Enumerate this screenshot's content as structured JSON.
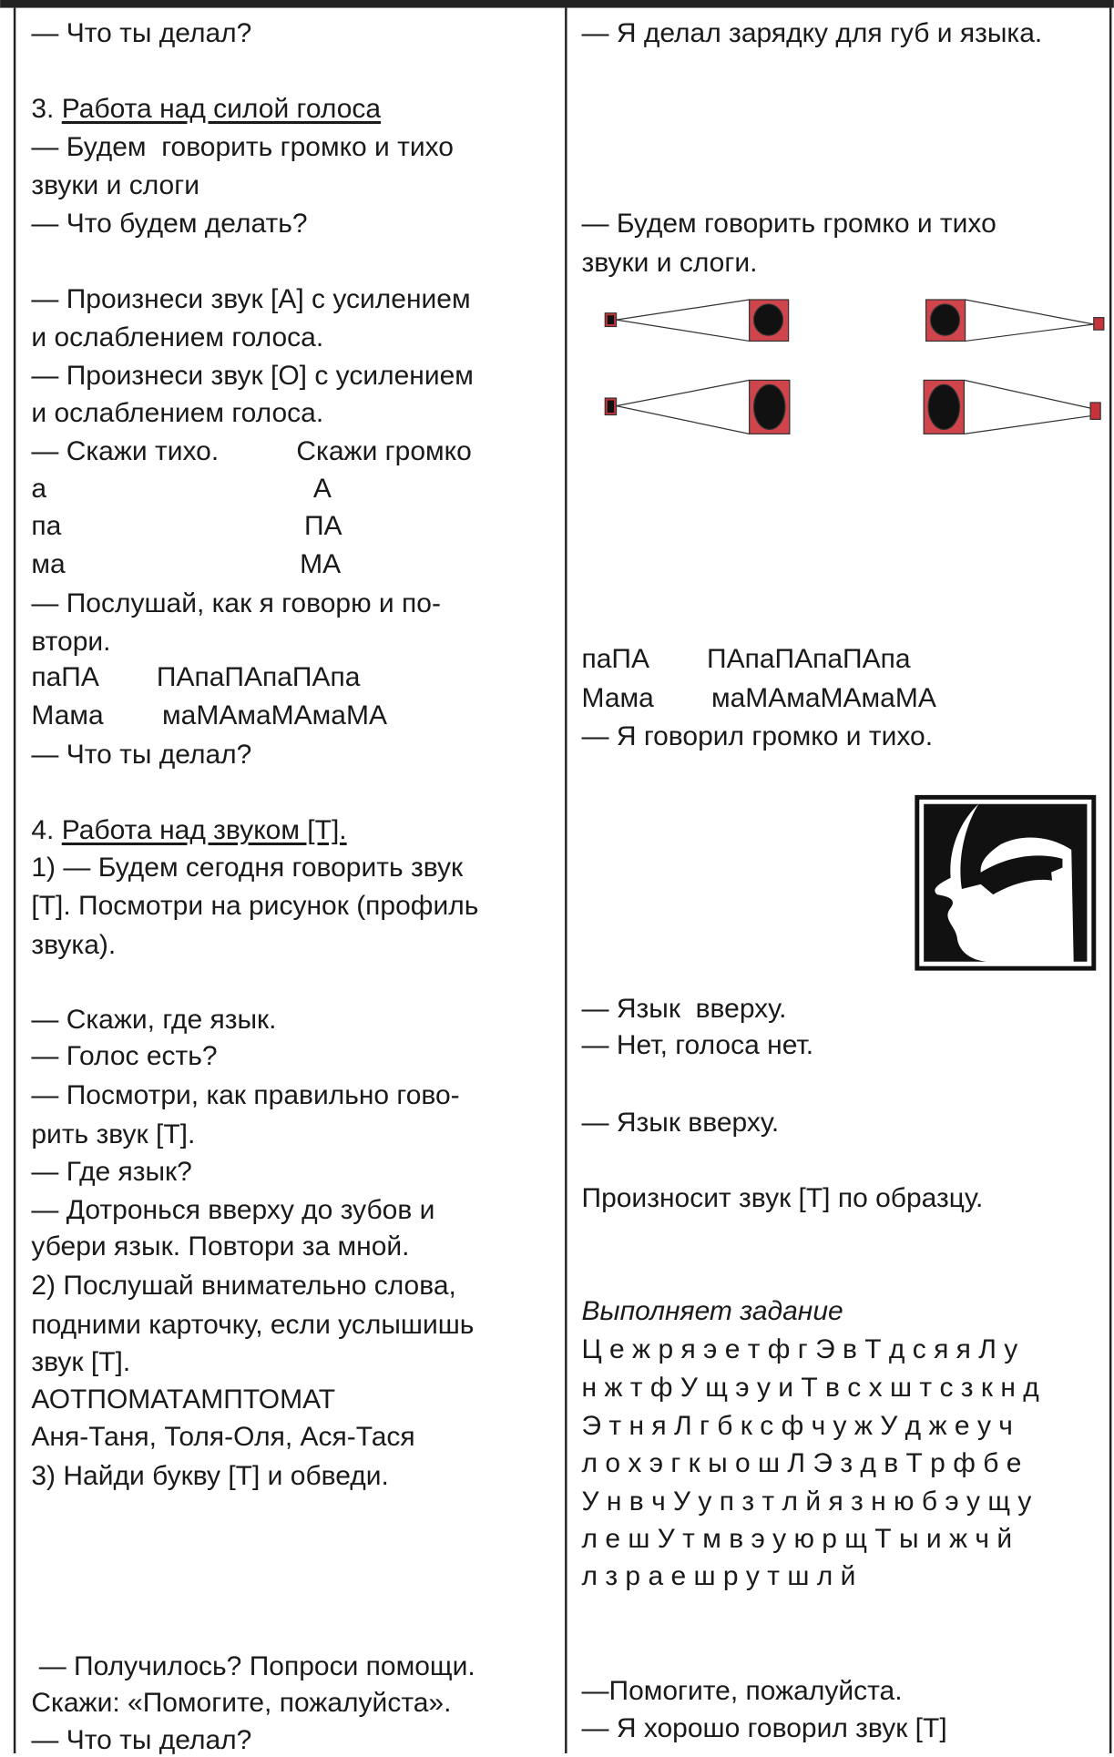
{
  "left": {
    "lines": [
      {
        "text": "— Что ты делал?"
      },
      {
        "number": "3.",
        "heading": "Работа над силой голоса"
      },
      {
        "text": "— Будем  говорить громко и тихо"
      },
      {
        "text": "звуки и слоги"
      },
      {
        "text": "— Что будем делать?"
      },
      {
        "text": "— Произнеси звук [А] с усилением"
      },
      {
        "text": "и ослаблением голоса."
      },
      {
        "text": "— Произнеси звук [О] с усилением"
      },
      {
        "text": "и ослаблением голоса."
      },
      {
        "text": "— Скажи тихо.",
        "text2": "Скажи громко"
      },
      {
        "text": "а",
        "text2": "А"
      },
      {
        "text": "па",
        "text2": "ПА"
      },
      {
        "text": "ма",
        "text2": "МА"
      },
      {
        "text": "— Послушай, как я говорю и по-"
      },
      {
        "text": "втори."
      },
      {
        "text": "паПА",
        "text2": "ПАпаПАпаПАпа"
      },
      {
        "text": "Мама",
        "text2": "маМАмаМАмаМА"
      },
      {
        "text": "— Что ты делал?"
      },
      {
        "number": "4.",
        "heading": "Работа над звуком [Т]."
      },
      {
        "text": "1) — Будем сегодня говорить звук"
      },
      {
        "text": "[Т]. Посмотри на рисунок (профиль"
      },
      {
        "text": "звука)."
      },
      {
        "text": "— Скажи, где язык."
      },
      {
        "text": "— Голос есть?"
      },
      {
        "text": "— Посмотри, как правильно гово-"
      },
      {
        "text": "рить звук [Т]."
      },
      {
        "text": "— Где язык?"
      },
      {
        "text": "— Дотронься вверху до зубов и"
      },
      {
        "text": "убери язык. Повтори за мной."
      },
      {
        "text": "2) Послушай внимательно слова,"
      },
      {
        "text": "подними карточку, если услышишь"
      },
      {
        "text": "звук [Т]."
      },
      {
        "text": "АОТПОМАТАМПТОМАТ"
      },
      {
        "text": "Аня-Таня, Толя-Оля, Ася-Тася"
      },
      {
        "text": "3) Найди букву [Т] и обведи."
      },
      {
        "text": " — Получилось? Попроси помощи."
      },
      {
        "text": "Скажи: «Помогите, пожалуйста»."
      },
      {
        "text": "— Что ты делал?"
      }
    ]
  },
  "right": {
    "lines": [
      {
        "text": "— Я делал зарядку для губ и языка."
      },
      {
        "text": "— Будем говорить громко и тихо"
      },
      {
        "text": "звуки и слоги."
      },
      {
        "text": "паПА",
        "text2": "ПАпаПАпаПАпа"
      },
      {
        "text": "Мама",
        "text2": "маМАмаМАмаМА"
      },
      {
        "text": "— Я говорил громко и тихо."
      },
      {
        "text": "— Язык  вверху."
      },
      {
        "text": "— Нет, голоса нет."
      },
      {
        "text": "— Язык вверху."
      },
      {
        "text": "Произносит звук [Т] по образцу."
      },
      {
        "text": "Выполняет задание"
      },
      {
        "text": "Ц е ж р я э е т ф г Э в Т д с я я Л у"
      },
      {
        "text": "н ж т ф У щ э у и Т в с х ш т с з к н д"
      },
      {
        "text": "Э т н я Л г б к с ф ч у ж У д ж е у ч"
      },
      {
        "text": "л о х э г к ы о ш Л Э з д в Т р ф б е"
      },
      {
        "text": "У н в ч У у п з т л й я з н ю б э у щ у"
      },
      {
        "text": "л е ш У т м в э у ю р щ Т ы и ж ч й"
      },
      {
        "text": "л з р а е ш р у т ш л й"
      },
      {
        "text": "—Помогите, пожалуйста."
      },
      {
        "text": "— Я хорошо говорил звук [Т]"
      }
    ]
  }
}
